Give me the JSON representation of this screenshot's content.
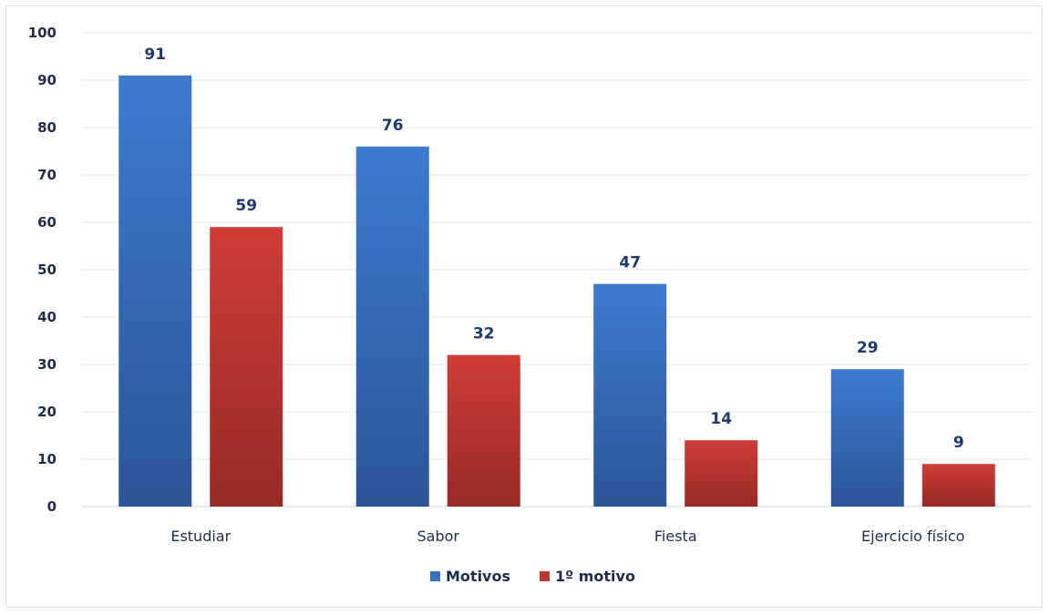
{
  "chart_data": {
    "type": "bar",
    "categories": [
      "Estudiar",
      "Sabor",
      "Fiesta",
      "Ejercicio físico"
    ],
    "series": [
      {
        "name": "Motivos",
        "values": [
          91,
          76,
          47,
          29
        ],
        "color": "#3a6fba"
      },
      {
        "name": "1º motivo",
        "values": [
          59,
          32,
          14,
          9
        ],
        "color": "#b83a35"
      }
    ],
    "ylim": [
      0,
      100
    ],
    "yticks": [
      0,
      10,
      20,
      30,
      40,
      50,
      60,
      70,
      80,
      90,
      100
    ],
    "grid": true,
    "legend": "bottom",
    "data_labels": true
  }
}
